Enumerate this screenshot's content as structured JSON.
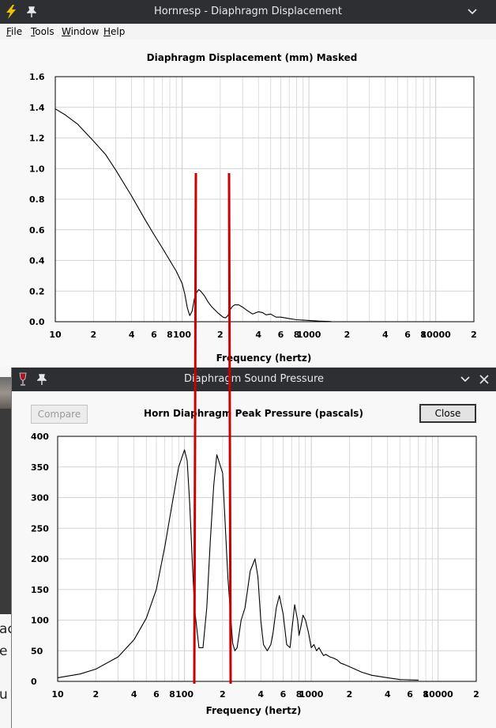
{
  "window1": {
    "title": "Hornresp - Diaphragm Displacement",
    "menu": [
      "File",
      "Tools",
      "Window",
      "Help"
    ],
    "chart_title": "Diaphragm Displacement (mm)   Masked"
  },
  "window2": {
    "title": "Diaphragm Sound Pressure",
    "compare_label": "Compare",
    "close_label": "Close",
    "chart_title": "Horn Diaphragm Peak Pressure (pascals)"
  },
  "background_text": [
    "ac",
    "e",
    "u"
  ],
  "colors": {
    "titlebar": "#2d2f33",
    "marker": "#cc0000",
    "curve": "#000000",
    "grid": "#d4d4d4"
  },
  "chart_data": [
    {
      "type": "line",
      "title": "Diaphragm Displacement (mm)   Masked",
      "xlabel": "Frequency (hertz)",
      "ylabel": "",
      "xscale": "log",
      "xlim": [
        10,
        20000
      ],
      "ylim": [
        0,
        1.6
      ],
      "yticks": [
        "0.0",
        "0.2",
        "0.4",
        "0.6",
        "0.8",
        "1.0",
        "1.2",
        "1.4",
        "1.6"
      ],
      "xticks": [
        "10",
        "2",
        "4",
        "6",
        "8",
        "100",
        "2",
        "4",
        "6",
        "8",
        "1000",
        "2",
        "4",
        "6",
        "8",
        "10000",
        "2"
      ],
      "grid": true,
      "x": [
        10,
        12,
        15,
        18,
        20,
        25,
        30,
        40,
        50,
        60,
        70,
        80,
        90,
        100,
        105,
        110,
        115,
        120,
        125,
        130,
        135,
        140,
        150,
        160,
        170,
        180,
        190,
        200,
        210,
        220,
        230,
        240,
        250,
        260,
        280,
        300,
        330,
        360,
        400,
        430,
        460,
        500,
        550,
        600,
        700,
        800,
        1000,
        1200,
        1500
      ],
      "values": [
        1.39,
        1.35,
        1.29,
        1.22,
        1.18,
        1.09,
        0.99,
        0.82,
        0.68,
        0.57,
        0.48,
        0.4,
        0.33,
        0.25,
        0.18,
        0.09,
        0.04,
        0.07,
        0.15,
        0.19,
        0.21,
        0.2,
        0.17,
        0.13,
        0.1,
        0.08,
        0.06,
        0.045,
        0.03,
        0.025,
        0.04,
        0.08,
        0.1,
        0.11,
        0.11,
        0.095,
        0.07,
        0.05,
        0.065,
        0.06,
        0.045,
        0.05,
        0.03,
        0.03,
        0.02,
        0.013,
        0.008,
        0.004,
        0.001
      ]
    },
    {
      "type": "line",
      "title": "Horn Diaphragm Peak Pressure (pascals)",
      "xlabel": "Frequency (hertz)",
      "ylabel": "",
      "xscale": "log",
      "xlim": [
        10,
        20000
      ],
      "ylim": [
        0,
        400
      ],
      "yticks": [
        "0",
        "50",
        "100",
        "150",
        "200",
        "250",
        "300",
        "350",
        "400"
      ],
      "xticks": [
        "10",
        "2",
        "4",
        "6",
        "8",
        "100",
        "2",
        "4",
        "6",
        "8",
        "1000",
        "2",
        "4",
        "6",
        "8",
        "10000",
        "2"
      ],
      "grid": true,
      "x": [
        10,
        15,
        20,
        30,
        40,
        50,
        60,
        70,
        80,
        90,
        100,
        105,
        110,
        115,
        120,
        130,
        140,
        150,
        160,
        170,
        180,
        200,
        220,
        240,
        250,
        260,
        280,
        300,
        330,
        360,
        380,
        400,
        420,
        450,
        480,
        500,
        530,
        560,
        600,
        640,
        680,
        700,
        740,
        780,
        800,
        830,
        860,
        900,
        950,
        1000,
        1050,
        1100,
        1150,
        1200,
        1250,
        1300,
        1400,
        1500,
        1600,
        1700,
        1800,
        2000,
        2500,
        3000,
        4000,
        5000,
        7000
      ],
      "values": [
        6,
        12,
        20,
        40,
        68,
        103,
        150,
        220,
        290,
        350,
        378,
        360,
        290,
        200,
        120,
        55,
        55,
        120,
        230,
        320,
        370,
        340,
        170,
        62,
        50,
        55,
        100,
        120,
        180,
        200,
        170,
        100,
        60,
        50,
        60,
        80,
        120,
        140,
        110,
        60,
        55,
        80,
        125,
        100,
        75,
        90,
        108,
        100,
        80,
        55,
        60,
        50,
        55,
        48,
        42,
        44,
        40,
        38,
        35,
        30,
        28,
        24,
        15,
        10,
        6,
        3,
        2
      ]
    }
  ]
}
